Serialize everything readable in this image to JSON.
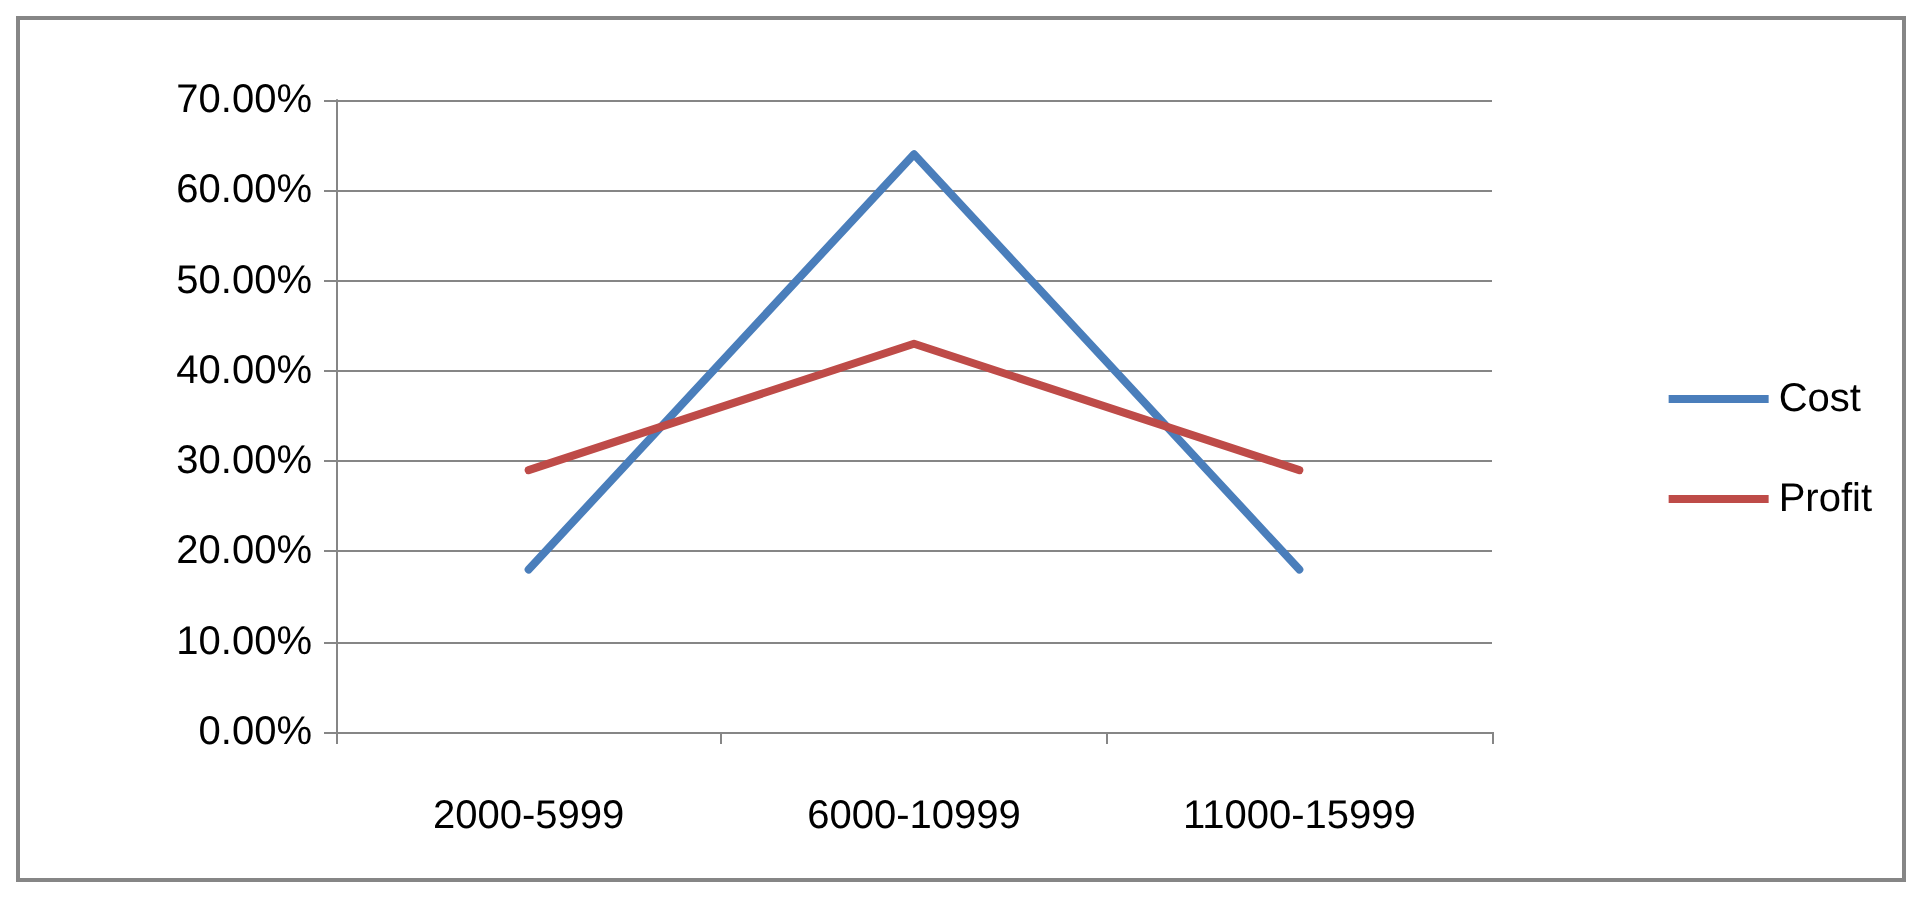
{
  "chart_data": {
    "type": "line",
    "categories": [
      "2000-5999",
      "6000-10999",
      "11000-15999"
    ],
    "series": [
      {
        "name": "Cost",
        "color": "#4a7ebb",
        "values": [
          18,
          64,
          18
        ]
      },
      {
        "name": "Profit",
        "color": "#be4b48",
        "values": [
          29,
          43,
          29
        ]
      }
    ],
    "ylim": [
      0,
      70
    ],
    "yticks": [
      {
        "value": 0,
        "label": "0.00%"
      },
      {
        "value": 10,
        "label": "10.00%"
      },
      {
        "value": 20,
        "label": "20.00%"
      },
      {
        "value": 30,
        "label": "30.00%"
      },
      {
        "value": 40,
        "label": "40.00%"
      },
      {
        "value": 50,
        "label": "50.00%"
      },
      {
        "value": 60,
        "label": "60.00%"
      },
      {
        "value": 70,
        "label": "70.00%"
      }
    ],
    "grid": "y",
    "legend": "right",
    "marker": "none",
    "line_style": "solid"
  }
}
